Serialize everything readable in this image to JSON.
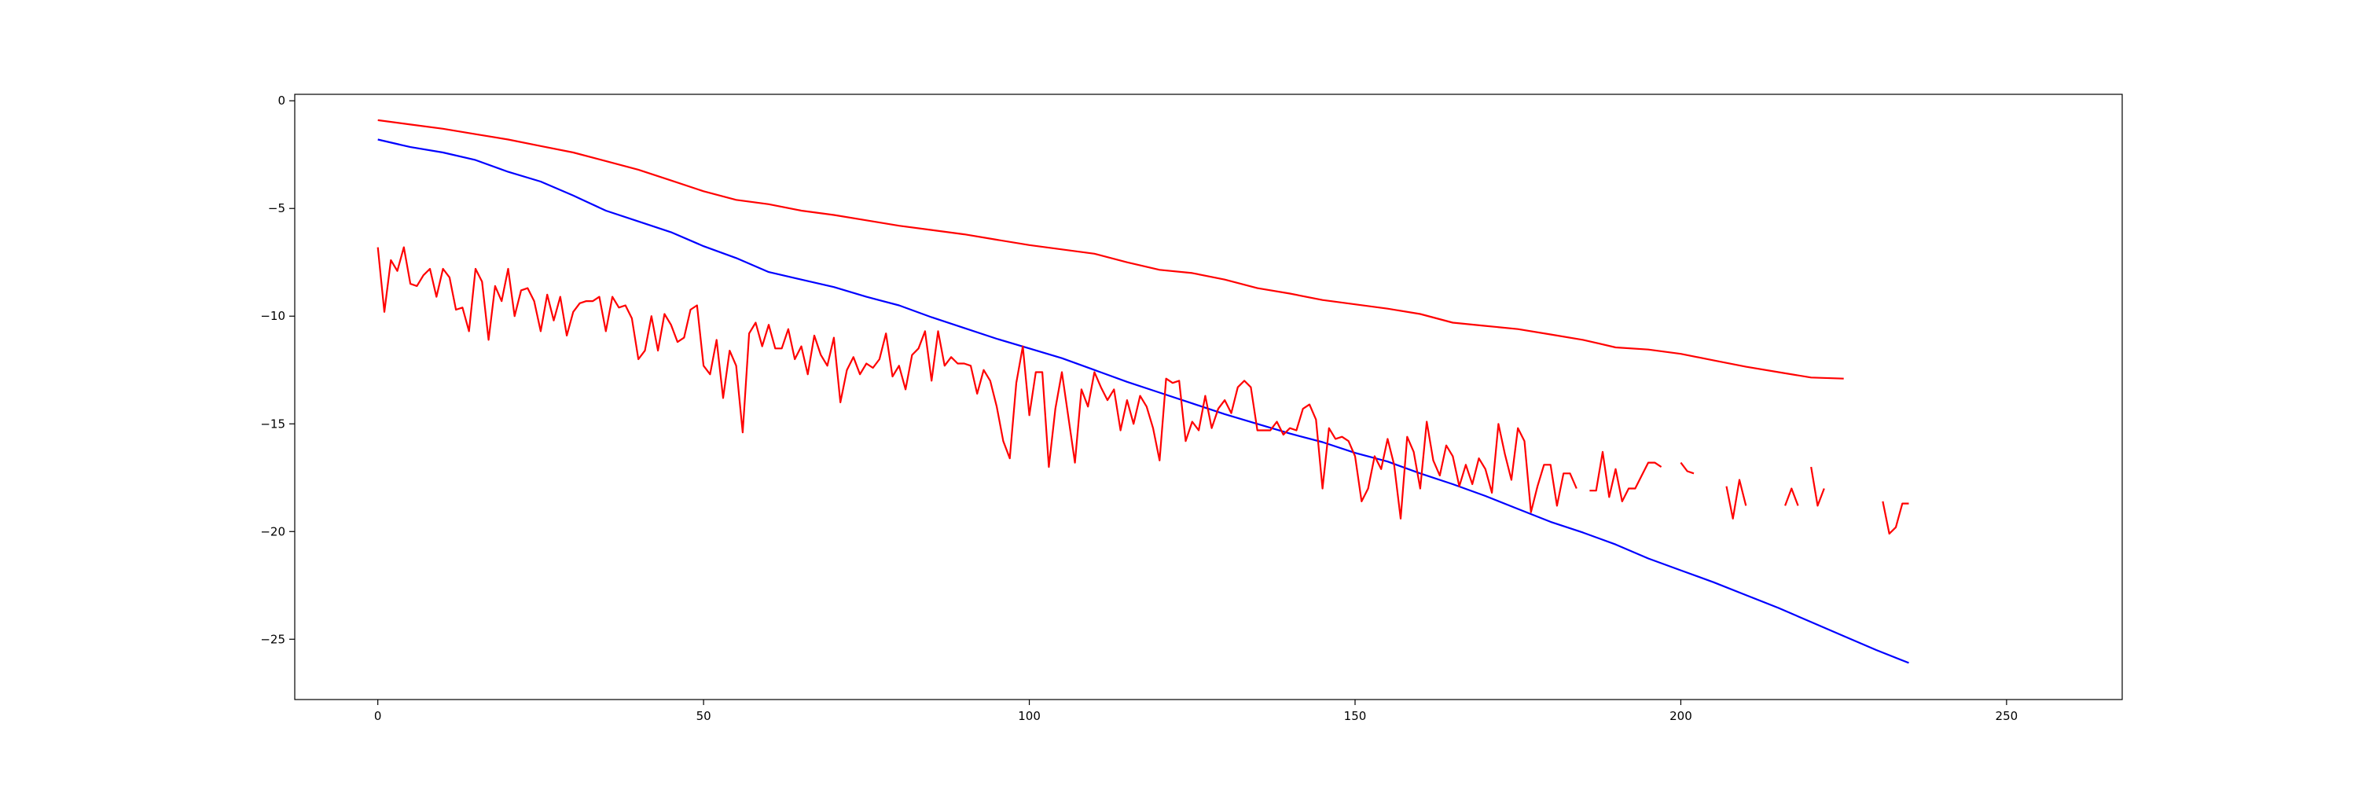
{
  "chart_data": {
    "type": "line",
    "title": "",
    "xlabel": "",
    "ylabel": "",
    "xlim": [
      -12.75,
      267.75
    ],
    "ylim": [
      -27.8,
      0.3
    ],
    "grid": false,
    "legend": "none",
    "x_ticks": [
      0,
      50,
      100,
      150,
      200,
      250
    ],
    "y_ticks": [
      0,
      -5,
      -10,
      -15,
      -20,
      -25
    ],
    "x_tick_labels": [
      "0",
      "50",
      "100",
      "150",
      "200",
      "250"
    ],
    "y_tick_labels": [
      "0",
      "−5",
      "−10",
      "−15",
      "−20",
      "−25"
    ],
    "series": [
      {
        "color": "#ff0000",
        "x_start": 0,
        "x_step": 5,
        "values": [
          -0.9,
          -1.1,
          -1.3,
          -1.55,
          -1.8,
          -2.1,
          -2.4,
          -2.8,
          -3.2,
          -3.7,
          -4.2,
          -4.6,
          -4.8,
          -5.1,
          -5.3,
          -5.55,
          -5.8,
          -6.0,
          -6.2,
          -6.45,
          -6.7,
          -6.9,
          -7.1,
          -7.5,
          -7.85,
          -8.0,
          -8.3,
          -8.7,
          -8.95,
          -9.25,
          -9.45,
          -9.65,
          -9.9,
          -10.3,
          -10.45,
          -10.6,
          -10.85,
          -11.1,
          -11.45,
          -11.55,
          -11.75,
          -12.05,
          -12.35,
          -12.6,
          -12.85,
          -12.9
        ]
      },
      {
        "color": "#0000ff",
        "x_start": 0,
        "x_step": 5,
        "values": [
          -1.8,
          -2.15,
          -2.4,
          -2.75,
          -3.3,
          -3.75,
          -4.4,
          -5.1,
          -5.6,
          -6.1,
          -6.75,
          -7.3,
          -7.95,
          -8.3,
          -8.65,
          -9.1,
          -9.5,
          -10.05,
          -10.55,
          -11.05,
          -11.5,
          -11.95,
          -12.5,
          -13.05,
          -13.55,
          -14.05,
          -14.55,
          -15.0,
          -15.45,
          -15.85,
          -16.35,
          -16.75,
          -17.3,
          -17.8,
          -18.35,
          -18.95,
          -19.55,
          -20.05,
          -20.6,
          -21.25,
          -21.8,
          -22.35,
          -22.95,
          -23.55,
          -24.2,
          -24.85,
          -25.5,
          -26.1
        ]
      },
      {
        "color": "#ff0000",
        "x_start": 0,
        "x_step": 1,
        "values": [
          -6.8,
          -9.8,
          -7.4,
          -7.9,
          -6.8,
          -8.5,
          -8.6,
          -8.1,
          -7.8,
          -9.1,
          -7.8,
          -8.2,
          -9.7,
          -9.6,
          -10.7,
          -7.8,
          -8.4,
          -11.1,
          -8.6,
          -9.3,
          -7.8,
          -10.0,
          -8.8,
          -8.7,
          -9.3,
          -10.7,
          -9.0,
          -10.2,
          -9.1,
          -10.9,
          -9.8,
          -9.4,
          -9.3,
          -9.3,
          -9.1,
          -10.7,
          -9.1,
          -9.6,
          -9.5,
          -10.1,
          -12.0,
          -11.6,
          -10.0,
          -11.6,
          -9.9,
          -10.4,
          -11.2,
          -11.0,
          -9.7,
          -9.5,
          -12.3,
          -12.7,
          -11.1,
          -13.8,
          -11.6,
          -12.3,
          -15.4,
          -10.8,
          -10.3,
          -11.4,
          -10.4,
          -11.5,
          -11.5,
          -10.6,
          -12.0,
          -11.4,
          -12.7,
          -10.9,
          -11.8,
          -12.3,
          -11.0,
          -14.0,
          -12.5,
          -11.9,
          -12.7,
          -12.2,
          -12.4,
          -12.0,
          -10.8,
          -12.8,
          -12.3,
          -13.4,
          -11.8,
          -11.5,
          -10.7,
          -13.0,
          -10.7,
          -12.3,
          -11.9,
          -12.2,
          -12.2,
          -12.3,
          -13.6,
          -12.5,
          -13.0,
          -14.2,
          -15.8,
          -16.6,
          -13.1,
          -11.4,
          -14.6,
          -12.6,
          -12.6,
          -17.0,
          -14.3,
          -12.6,
          -14.7,
          -16.8,
          -13.4,
          -14.2,
          -12.6,
          -13.3,
          -13.9,
          -13.4,
          -15.3,
          -13.9,
          -15.0,
          -13.7,
          -14.2,
          -15.2,
          -16.7,
          -12.9,
          -13.1,
          -13.0,
          -15.8,
          -14.9,
          -15.3,
          -13.7,
          -15.2,
          -14.3,
          -13.9,
          -14.5,
          -13.3,
          -13.0,
          -13.3,
          -15.3,
          -15.3,
          -15.3,
          -14.9,
          -15.5,
          -15.2,
          -15.3,
          -14.3,
          -14.1,
          -14.8,
          -18.0,
          -15.2,
          -15.7,
          -15.6,
          -15.8,
          -16.5,
          -18.6,
          -18.0,
          -16.5,
          -17.1,
          -15.7,
          -16.9,
          -19.4,
          -15.6,
          -16.3,
          -18.0,
          -14.9,
          -16.7,
          -17.4,
          -16.0,
          -16.5,
          -17.9,
          -16.9,
          -17.8,
          -16.6,
          -17.1,
          -18.2,
          -15.0,
          -16.4,
          -17.6,
          -15.2,
          -15.8,
          -19.1,
          -17.9,
          -16.9,
          -16.9,
          -18.8,
          -17.3,
          -17.3,
          -18.0,
          null,
          -18.1,
          -18.1,
          -16.3,
          -18.4,
          -17.1,
          -18.6,
          -18.0,
          -18.0,
          -17.4,
          -16.8,
          -16.8,
          -17.0,
          null,
          null,
          -16.8,
          -17.2,
          -17.3,
          null,
          null,
          null,
          null,
          -17.9,
          -19.4,
          -17.6,
          -18.8,
          null,
          null,
          null,
          null,
          null,
          -18.8,
          -18.0,
          -18.8,
          null,
          -17.0,
          -18.8,
          -18.0,
          null,
          null,
          null,
          null,
          null,
          null,
          null,
          null,
          -18.6,
          -20.1,
          -19.8,
          -18.7,
          -18.7
        ]
      }
    ]
  }
}
